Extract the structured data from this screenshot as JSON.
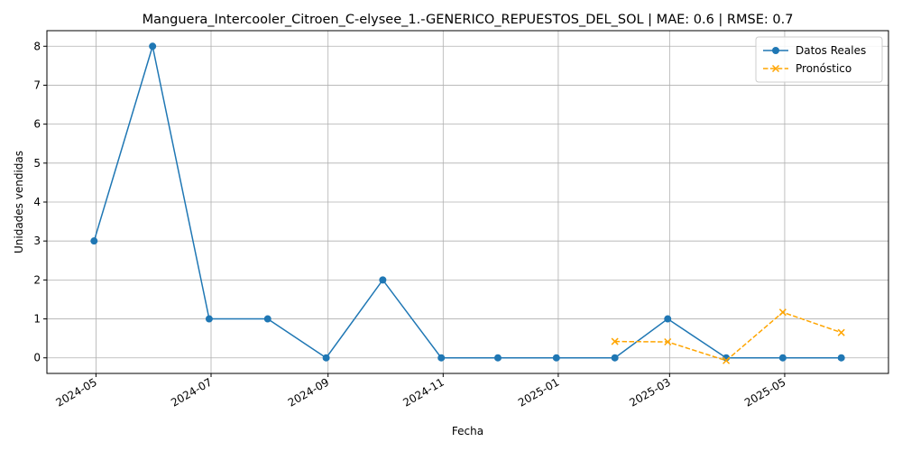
{
  "chart_data": {
    "type": "line",
    "title": "Manguera_Intercooler_Citroen_C-elysee_1.-GENERICO_REPUESTOS_DEL_SOL | MAE: 0.6 | RMSE: 0.7",
    "xlabel": "Fecha",
    "ylabel": "Unidades vendidas",
    "x_tick_labels": [
      "2024-05",
      "2024-07",
      "2024-09",
      "2024-11",
      "2025-01",
      "2025-03",
      "2025-05"
    ],
    "x_tick_dates": [
      "2024-05-01",
      "2024-07-01",
      "2024-09-01",
      "2024-11-01",
      "2025-01-01",
      "2025-03-01",
      "2025-05-01"
    ],
    "x_range": [
      "2024-04-05",
      "2025-06-25"
    ],
    "y_ticks": [
      0,
      1,
      2,
      3,
      4,
      5,
      6,
      7,
      8
    ],
    "ylim": [
      -0.4,
      8.4
    ],
    "grid": true,
    "legend_position": "top-right",
    "series": [
      {
        "name": "Datos Reales",
        "color": "#1f77b4",
        "line_style": "solid",
        "marker": "circle",
        "x": [
          "2024-04-30",
          "2024-05-31",
          "2024-06-30",
          "2024-07-31",
          "2024-08-31",
          "2024-09-30",
          "2024-10-31",
          "2024-11-30",
          "2024-12-31",
          "2025-01-31",
          "2025-02-28",
          "2025-03-31",
          "2025-04-30",
          "2025-05-31"
        ],
        "y": [
          3,
          8,
          1,
          1,
          0,
          2,
          0,
          0,
          0,
          0,
          1,
          0,
          0,
          0
        ]
      },
      {
        "name": "Pronóstico",
        "color": "#ffa500",
        "line_style": "dashed",
        "marker": "x",
        "x": [
          "2025-01-31",
          "2025-02-28",
          "2025-03-31",
          "2025-04-30",
          "2025-05-31"
        ],
        "y": [
          0.42,
          0.41,
          -0.07,
          1.17,
          0.65
        ]
      }
    ]
  }
}
